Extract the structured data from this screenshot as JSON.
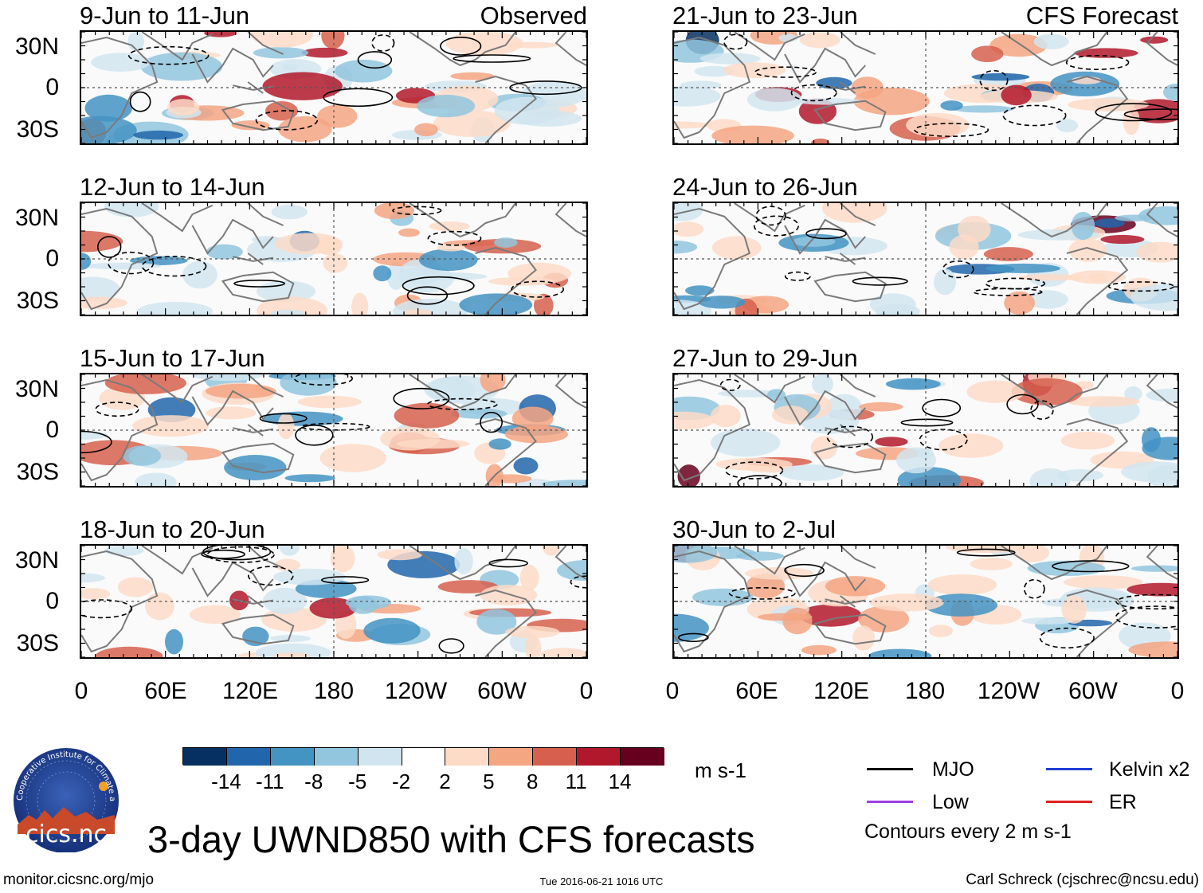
{
  "observed_label": "Observed",
  "forecast_label": "CFS Forecast",
  "panels_left": [
    {
      "date": "9-Jun to 11-Jun"
    },
    {
      "date": "12-Jun to 14-Jun"
    },
    {
      "date": "15-Jun to 17-Jun"
    },
    {
      "date": "18-Jun to 20-Jun"
    }
  ],
  "panels_right": [
    {
      "date": "21-Jun to 23-Jun"
    },
    {
      "date": "24-Jun to 26-Jun"
    },
    {
      "date": "27-Jun to 29-Jun"
    },
    {
      "date": "30-Jun to 2-Jul"
    }
  ],
  "lat_labels": [
    "30N",
    "0",
    "30S"
  ],
  "lon_labels": [
    "0",
    "60E",
    "120E",
    "180",
    "120W",
    "60W",
    "0"
  ],
  "colorbar": {
    "labels": [
      "-14",
      "-11",
      "-8",
      "-5",
      "-2",
      "2",
      "5",
      "8",
      "11",
      "14"
    ],
    "colors": [
      "#053061",
      "#2166ac",
      "#4393c3",
      "#92c5de",
      "#d1e5f0",
      "#ffffff",
      "#fddbc7",
      "#f4a582",
      "#d6604d",
      "#b2182b",
      "#67001f"
    ],
    "units": "m s-1"
  },
  "legend": {
    "mjo": "MJO",
    "kelvin": "Kelvin x2",
    "low": "Low",
    "er": "ER",
    "contours": "Contours every 2 m s-1",
    "colors": {
      "mjo": "#000000",
      "kelvin": "#1f3fd6",
      "low": "#a040e0",
      "er": "#e02020"
    }
  },
  "title": "3-day UWND850 with CFS forecasts",
  "logo_text": "cics.nc",
  "logo_ring_text": "Cooperative Institute for Climate and Satellites",
  "footer": {
    "left": "monitor.cicsnc.org/mjo",
    "center": "Tue 2016-06-21 1016 UTC",
    "right": "Carl Schreck (cjschrec@ncsu.edu)"
  }
}
